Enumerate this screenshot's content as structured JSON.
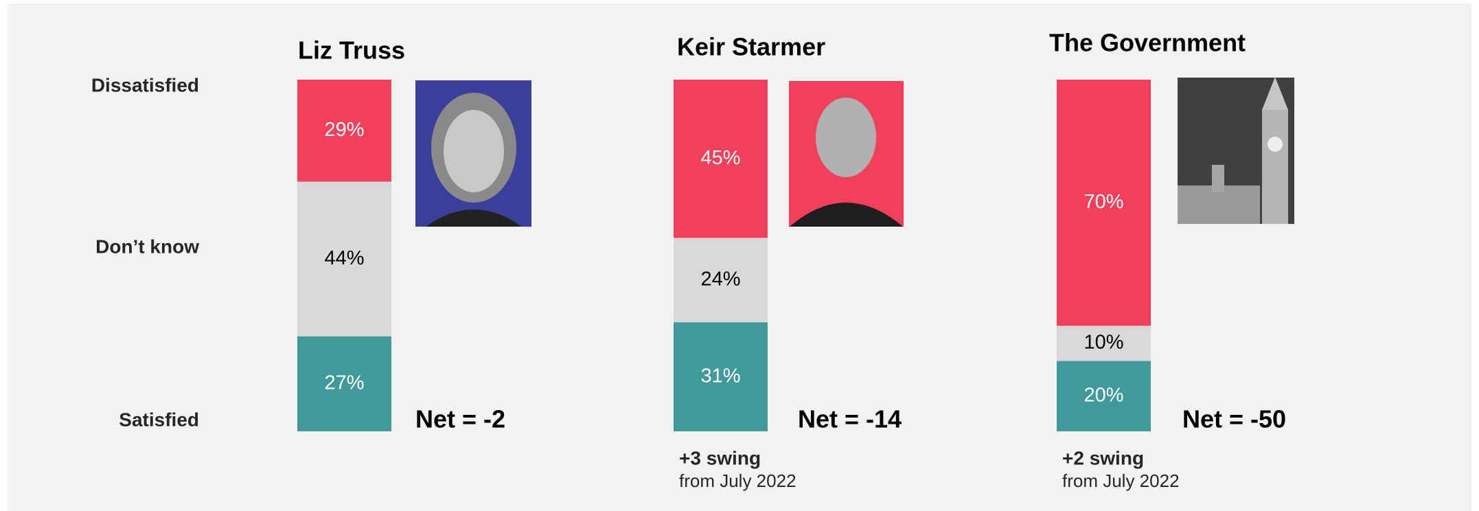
{
  "row_labels": [
    "Dissatisfied",
    "Don’t know",
    "Satisfied"
  ],
  "chart_data": [
    {
      "type": "stacked-bar",
      "title": "Liz Truss",
      "values": [
        29,
        44,
        27
      ],
      "value_labels": [
        "29%",
        "44%",
        "27%"
      ],
      "colors": [
        "#f2405a",
        "#d9d9d9",
        "#419a9a"
      ],
      "annotation": "Net = -2"
    },
    {
      "type": "stacked-bar",
      "title": "Keir Starmer",
      "values": [
        45,
        24,
        31
      ],
      "value_labels": [
        "45%",
        "24%",
        "31%"
      ],
      "colors": [
        "#f2405a",
        "#d9d9d9",
        "#419a9a"
      ],
      "annotation": "Net = -14",
      "swing": "+3 swing",
      "swing_note": "from July 2022"
    },
    {
      "type": "stacked-bar",
      "title": "The Government",
      "values": [
        70,
        10,
        20
      ],
      "value_labels": [
        "70%",
        "10%",
        "20%"
      ],
      "colors": [
        "#f2405a",
        "#d9d9d9",
        "#419a9a"
      ],
      "annotation": "Net = -50",
      "swing": "+2 swing",
      "swing_note": "from July 2022"
    }
  ]
}
